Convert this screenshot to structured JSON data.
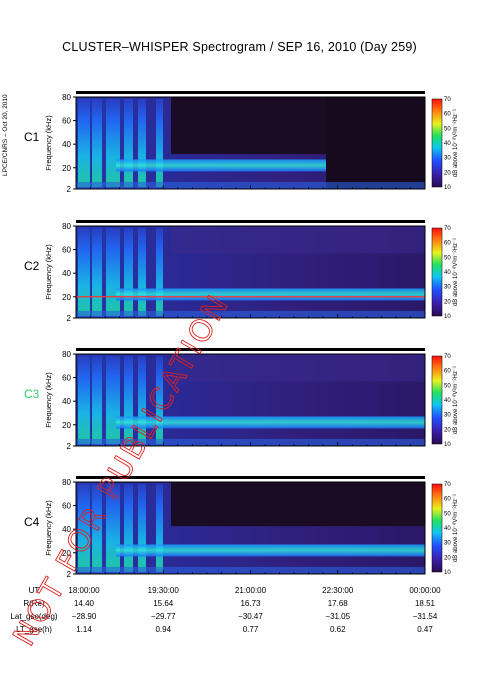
{
  "title": "CLUSTER–WHISPER Spectrogram / SEP 16, 2010 (Day 259)",
  "side_label": "LPCE/CNRS – Oct 20, 2010",
  "watermark": "NOT FOR PUBLICATION",
  "colors": {
    "watermark": "#dd2222",
    "c3_label": "#33cc66",
    "spectrogram_bg": "#1a0a2e",
    "pink_line": "#ff3333"
  },
  "chart_data": {
    "type": "heatmap",
    "panels": [
      {
        "label": "C1",
        "ylabel": "Frequency (kHz)",
        "yticks": [
          "80",
          "60",
          "40",
          "20",
          "2"
        ],
        "ylim": [
          2,
          80
        ],
        "colorbar_label": "dB above 10⁻⁸V²m⁻²Hz⁻¹",
        "colorbar_ticks": [
          "70",
          "60",
          "50",
          "40",
          "30",
          "20",
          "10"
        ]
      },
      {
        "label": "C2",
        "ylabel": "Frequency (kHz)",
        "yticks": [
          "80",
          "60",
          "40",
          "20",
          "2"
        ],
        "ylim": [
          2,
          80
        ],
        "colorbar_label": "dB above 10⁻⁸V²m⁻²Hz⁻¹",
        "colorbar_ticks": [
          "70",
          "60",
          "50",
          "40",
          "30",
          "20",
          "10"
        ]
      },
      {
        "label": "C3",
        "ylabel": "Frequency (kHz)",
        "yticks": [
          "80",
          "60",
          "40",
          "20",
          "2"
        ],
        "ylim": [
          2,
          80
        ],
        "colorbar_label": "dB above 10⁻⁸V²m⁻²Hz⁻¹",
        "colorbar_ticks": [
          "70",
          "60",
          "50",
          "40",
          "30",
          "20",
          "10"
        ]
      },
      {
        "label": "C4",
        "ylabel": "Frequency (kHz)",
        "yticks": [
          "80",
          "60",
          "40",
          "20",
          "2"
        ],
        "ylim": [
          2,
          80
        ],
        "colorbar_label": "dB above 10⁻⁸V²m⁻²Hz⁻¹",
        "colorbar_ticks": [
          "70",
          "60",
          "50",
          "40",
          "30",
          "20",
          "10"
        ]
      }
    ],
    "colorbar_range": [
      10,
      70
    ],
    "x_ticks": [
      "18:00:00",
      "19:30:00",
      "21:00:00",
      "22:30:00",
      "00:00:00"
    ],
    "ephemeris": [
      {
        "name": "UT",
        "values": [
          "18:00:00",
          "19:30:00",
          "21:00:00",
          "22:30:00",
          "00:00:00"
        ]
      },
      {
        "name": "R(Re)",
        "values": [
          "14.40",
          "15.64",
          "16.73",
          "17.68",
          "18.51"
        ]
      },
      {
        "name": "Lat_gse(deg)",
        "values": [
          "−28.90",
          "−29.77",
          "−30.47",
          "−31.05",
          "−31.54"
        ]
      },
      {
        "name": "LT_gse(h)",
        "values": [
          "1.14",
          "0.94",
          "0.77",
          "0.62",
          "0.47"
        ]
      }
    ]
  }
}
